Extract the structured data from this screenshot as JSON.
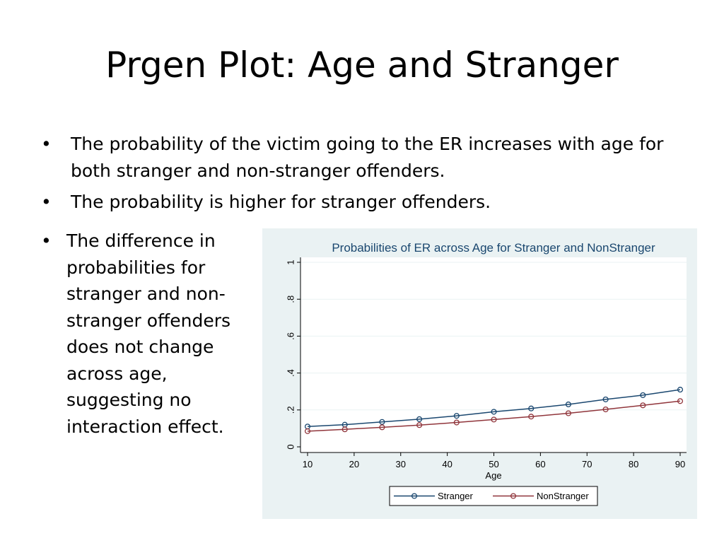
{
  "slide": {
    "title": "Prgen Plot: Age and Stranger",
    "bullets": [
      "The probability of the victim going to the ER increases with age for both stranger and non-stranger offenders.",
      "The probability is higher for stranger offenders."
    ],
    "side_bullet": "The difference in probabilities for stranger and non-stranger offenders does not change across age, suggesting no interaction effect.",
    "bullet_symbol": "•"
  },
  "chart_data": {
    "type": "line",
    "title": "Probabilities of ER across Age for Stranger and NonStranger",
    "xlabel": "Age",
    "ylabel": "",
    "xlim": [
      10,
      90
    ],
    "ylim": [
      0,
      1
    ],
    "xticks": [
      10,
      20,
      30,
      40,
      50,
      60,
      70,
      80,
      90
    ],
    "yticks": [
      {
        "value": 0,
        "label": "0"
      },
      {
        "value": 0.2,
        "label": ".2"
      },
      {
        "value": 0.4,
        "label": ".4"
      },
      {
        "value": 0.6,
        "label": ".6"
      },
      {
        "value": 0.8,
        "label": ".8"
      },
      {
        "value": 1,
        "label": "1"
      }
    ],
    "grid": true,
    "legend_position": "bottom",
    "x": [
      10,
      18,
      26,
      34,
      42,
      50,
      58,
      66,
      74,
      82,
      90
    ],
    "series": [
      {
        "name": "Stranger",
        "color": "#1a476f",
        "values": [
          0.11,
          0.12,
          0.135,
          0.15,
          0.168,
          0.19,
          0.208,
          0.23,
          0.257,
          0.28,
          0.31
        ]
      },
      {
        "name": "NonStranger",
        "color": "#90353b",
        "values": [
          0.085,
          0.095,
          0.106,
          0.118,
          0.132,
          0.148,
          0.164,
          0.182,
          0.203,
          0.225,
          0.248
        ]
      }
    ],
    "colors": {
      "panel": "#eaf2f3",
      "plot": "#ffffff",
      "title": "#1a476f",
      "grid": "#eaf2f3"
    }
  }
}
